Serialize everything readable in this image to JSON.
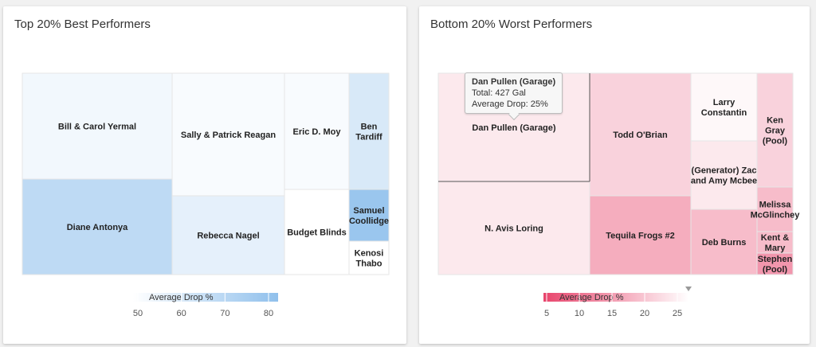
{
  "chart_data": [
    {
      "type": "treemap",
      "title": "Top 20% Best Performers",
      "legend_title": "Average Drop %",
      "legend_ticks": [
        50,
        60,
        70,
        80
      ],
      "scale": {
        "min": 48,
        "max": 82,
        "color_min": "#ffffff",
        "color_max": "#90c0ec"
      },
      "cells": [
        {
          "name": "Bill & Carol Yermal",
          "value": 52
        },
        {
          "name": "Diane Antonya",
          "value": 68
        },
        {
          "name": "Sally & Patrick Reagan",
          "value": 50
        },
        {
          "name": "Rebecca Nagel",
          "value": 56
        },
        {
          "name": "Eric D. Moy",
          "value": 50
        },
        {
          "name": "Budget Blinds",
          "value": 48
        },
        {
          "name": "Ben Tardiff",
          "value": 60
        },
        {
          "name": "Samuel Coollidge",
          "value": 79
        },
        {
          "name": "Kenosi Thabo",
          "value": 48
        }
      ]
    },
    {
      "type": "treemap",
      "title": "Bottom 20% Worst Performers",
      "legend_title": "Average Drop %",
      "legend_ticks": [
        5,
        10,
        15,
        20,
        25
      ],
      "scale": {
        "min": 3,
        "max": 28,
        "color_min": "#e8446c",
        "color_max": "#ffffff"
      },
      "cells": [
        {
          "name": "Dan Pullen (Garage)",
          "value": 25
        },
        {
          "name": "N. Avis Loring",
          "value": 25
        },
        {
          "name": "Todd O'Brian",
          "value": 22
        },
        {
          "name": "Tequila Frogs #2",
          "value": 17
        },
        {
          "name": "Larry Constantin",
          "value": 27
        },
        {
          "name": "(Generator) Zac and Amy Mcbee",
          "value": 25
        },
        {
          "name": "Deb Burns",
          "value": 19
        },
        {
          "name": "Ken Gray (Pool)",
          "value": 22
        },
        {
          "name": "Melissa McGlinchey",
          "value": 19
        },
        {
          "name": "Kent & Mary",
          "value": 19
        },
        {
          "name": "Stephen (Pool)",
          "value": 14
        }
      ]
    }
  ],
  "tooltip": {
    "title": "Dan Pullen (Garage)",
    "total": "Total: 427 Gal",
    "average_drop": "Average Drop: 25%"
  }
}
